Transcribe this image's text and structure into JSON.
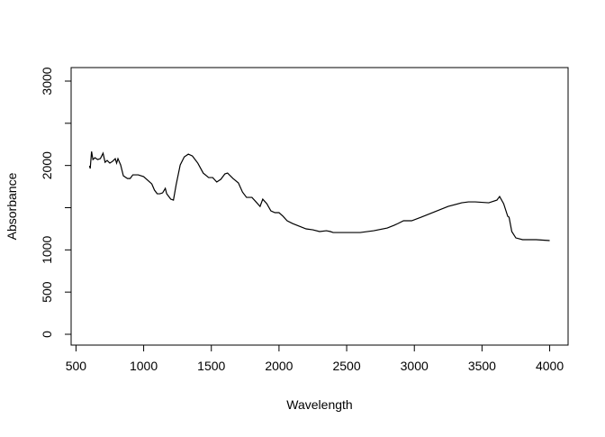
{
  "chart_data": {
    "type": "line",
    "x_label": "Wavelength",
    "y_label": "Absorbance",
    "xlim": [
      464,
      4136
    ],
    "ylim": [
      -128,
      3160
    ],
    "xticks": [
      500,
      1000,
      1500,
      2000,
      2500,
      3000,
      3500,
      4000
    ],
    "yticks": [
      0,
      500,
      1000,
      2000,
      3000
    ],
    "y_minor_ticks": [
      1500,
      2500
    ],
    "color": "#000000",
    "x": [
      600,
      605,
      615,
      625,
      640,
      660,
      680,
      700,
      715,
      730,
      750,
      770,
      790,
      800,
      810,
      830,
      850,
      880,
      900,
      920,
      960,
      1000,
      1030,
      1060,
      1080,
      1100,
      1120,
      1140,
      1160,
      1170,
      1200,
      1220,
      1240,
      1270,
      1300,
      1330,
      1360,
      1400,
      1440,
      1480,
      1510,
      1540,
      1570,
      1600,
      1620,
      1660,
      1700,
      1730,
      1760,
      1800,
      1830,
      1860,
      1880,
      1910,
      1940,
      1970,
      2000,
      2030,
      2060,
      2100,
      2150,
      2200,
      2250,
      2300,
      2350,
      2380,
      2400,
      2500,
      2600,
      2700,
      2800,
      2850,
      2880,
      2920,
      2980,
      3050,
      3150,
      3250,
      3350,
      3400,
      3450,
      3550,
      3610,
      3630,
      3660,
      3690,
      3700,
      3720,
      3750,
      3800,
      3900,
      4000
    ],
    "values": [
      1996,
      1964,
      2166,
      2070,
      2092,
      2070,
      2081,
      2145,
      2038,
      2060,
      2028,
      2049,
      2081,
      2028,
      2081,
      2006,
      1878,
      1846,
      1846,
      1889,
      1889,
      1868,
      1825,
      1782,
      1708,
      1665,
      1665,
      1676,
      1729,
      1665,
      1601,
      1590,
      1772,
      2006,
      2102,
      2134,
      2113,
      2028,
      1910,
      1857,
      1857,
      1804,
      1836,
      1900,
      1910,
      1846,
      1793,
      1686,
      1622,
      1622,
      1569,
      1515,
      1601,
      1547,
      1462,
      1441,
      1441,
      1398,
      1345,
      1313,
      1281,
      1249,
      1238,
      1217,
      1227,
      1217,
      1206,
      1206,
      1206,
      1227,
      1259,
      1291,
      1313,
      1345,
      1345,
      1387,
      1451,
      1515,
      1558,
      1569,
      1569,
      1558,
      1590,
      1633,
      1547,
      1398,
      1387,
      1217,
      1142,
      1121,
      1121,
      1110
    ]
  }
}
